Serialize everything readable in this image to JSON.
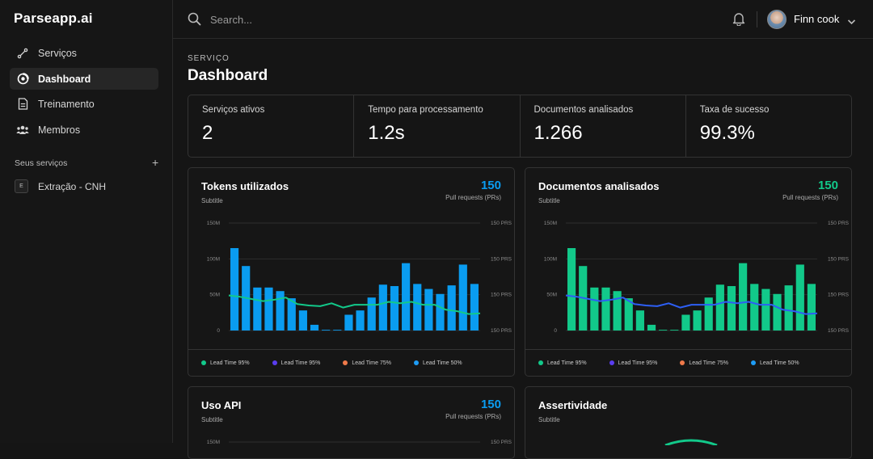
{
  "app": {
    "brand": "Parseapp.ai"
  },
  "sidebar": {
    "items": [
      {
        "label": "Serviços",
        "icon": "connection-icon",
        "active": false
      },
      {
        "label": "Dashboard",
        "icon": "dashboard-icon",
        "active": true
      },
      {
        "label": "Treinamento",
        "icon": "document-icon",
        "active": false
      },
      {
        "label": "Membros",
        "icon": "users-icon",
        "active": false
      }
    ],
    "section_label": "Seus serviços",
    "add_label": "+",
    "services": [
      {
        "badge": "E",
        "label": "Extração - CNH"
      }
    ]
  },
  "topbar": {
    "search_placeholder": "Search...",
    "user_name": "Finn cook"
  },
  "page": {
    "breadcrumb": "SERVIÇO",
    "title": "Dashboard"
  },
  "stats": [
    {
      "label": "Serviços ativos",
      "value": "2"
    },
    {
      "label": "Tempo para processamento",
      "value": "1.2s"
    },
    {
      "label": "Documentos analisados",
      "value": "1.266"
    },
    {
      "label": "Taxa de sucesso",
      "value": "99.3%"
    }
  ],
  "colors": {
    "blue": "#0a9cf0",
    "green": "#12c98a",
    "line_green": "#12c98a",
    "line_blue": "#2d5ff5",
    "legend": [
      "#12c98a",
      "#5a3df0",
      "#f07a4a",
      "#1e9cf5"
    ]
  },
  "cards": [
    {
      "title": "Tokens utilizados",
      "subtitle": "Subtitle",
      "number": "150",
      "number_label": "Pull requests (PRs)",
      "number_color": "#0a9cf0"
    },
    {
      "title": "Documentos analisados",
      "subtitle": "Subtitle",
      "number": "150",
      "number_label": "Pull requests (PRs)",
      "number_color": "#12c98a"
    },
    {
      "title": "Uso API",
      "subtitle": "Subtitle",
      "number": "150",
      "number_label": "Pull requests (PRs)",
      "number_color": "#0a9cf0"
    },
    {
      "title": "Assertividade",
      "subtitle": "Subtitle"
    }
  ],
  "legend": [
    "Lead Time 95%",
    "Lead Time 95%",
    "Lead Time 75%",
    "Lead Time 50%"
  ],
  "chart_data": [
    {
      "type": "bar",
      "title": "Tokens utilizados",
      "left_ticks": [
        "150M",
        "100M",
        "50M",
        "0"
      ],
      "right_ticks": [
        "150 PRS",
        "150 PRS",
        "150 PRS",
        "150 PRS"
      ],
      "ylim": [
        0,
        150
      ],
      "bars": [
        115,
        90,
        60,
        60,
        55,
        45,
        28,
        8,
        1,
        1,
        22,
        28,
        46,
        64,
        62,
        94,
        65,
        58,
        51,
        63,
        92,
        65
      ],
      "line": [
        49,
        47,
        44,
        41,
        43,
        46,
        37,
        35,
        34,
        38,
        32,
        36,
        36,
        36,
        40,
        38,
        40,
        36,
        36,
        29,
        27,
        23,
        24
      ],
      "bar_color": "#0a9cf0",
      "line_color": "#12c98a"
    },
    {
      "type": "bar",
      "title": "Documentos analisados",
      "left_ticks": [
        "150M",
        "100M",
        "50M",
        "0"
      ],
      "right_ticks": [
        "150 PRS",
        "150 PRS",
        "150 PRS",
        "150 PRS"
      ],
      "ylim": [
        0,
        150
      ],
      "bars": [
        115,
        90,
        60,
        60,
        55,
        45,
        28,
        8,
        1,
        1,
        22,
        28,
        46,
        64,
        62,
        94,
        65,
        58,
        51,
        63,
        92,
        65
      ],
      "line": [
        49,
        47,
        44,
        41,
        43,
        46,
        37,
        35,
        34,
        38,
        32,
        36,
        36,
        36,
        40,
        38,
        40,
        36,
        36,
        29,
        27,
        23,
        24
      ],
      "bar_color": "#12c98a",
      "line_color": "#2d5ff5"
    },
    {
      "type": "bar",
      "title": "Uso API",
      "left_ticks": [
        "150M"
      ],
      "right_ticks": [
        "150 PRS"
      ],
      "ylim": [
        0,
        150
      ],
      "bars": [],
      "line": [],
      "bar_color": "#0a9cf0",
      "line_color": "#12c98a"
    }
  ]
}
